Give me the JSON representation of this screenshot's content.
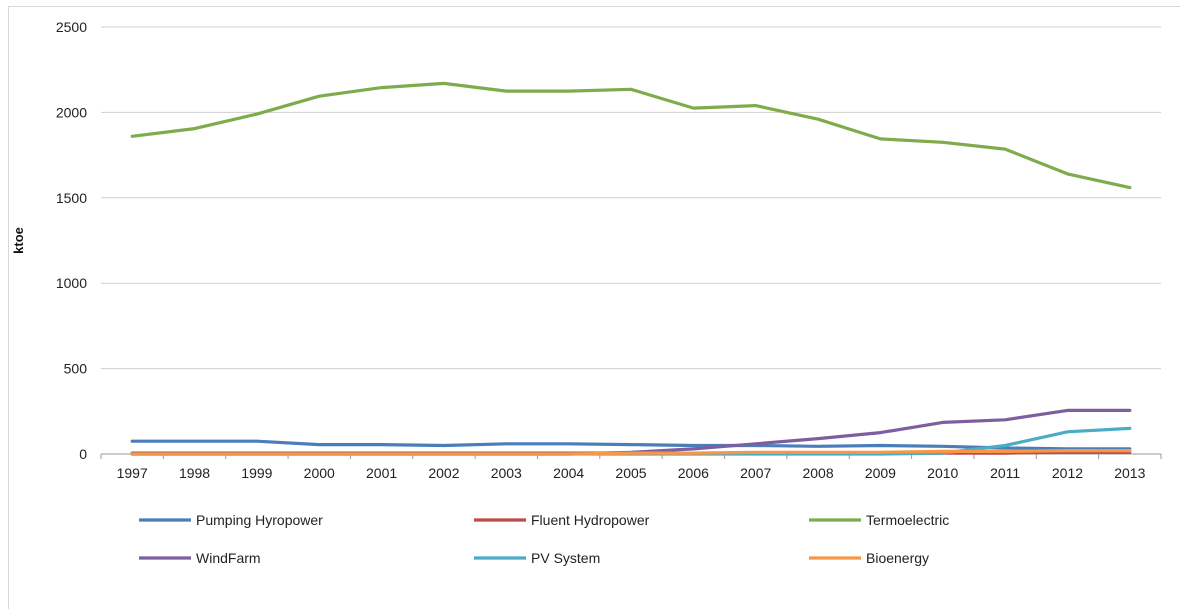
{
  "chart_data": {
    "type": "line",
    "title": "",
    "xlabel": "",
    "ylabel": "ktoe",
    "ylim": [
      0,
      2500
    ],
    "yticks": [
      0,
      500,
      1000,
      1500,
      2000,
      2500
    ],
    "grid": "horizontal",
    "legend_position": "bottom",
    "x": [
      "1997",
      "1998",
      "1999",
      "2000",
      "2001",
      "2002",
      "2003",
      "2004",
      "2005",
      "2006",
      "2007",
      "2008",
      "2009",
      "2010",
      "2011",
      "2012",
      "2013"
    ],
    "series": [
      {
        "name": "Pumping Hyropower",
        "color": "#4a7ebb",
        "values": [
          75,
          75,
          75,
          55,
          55,
          50,
          60,
          60,
          55,
          50,
          50,
          45,
          50,
          45,
          35,
          30,
          30
        ]
      },
      {
        "name": "Fluent Hydropower",
        "color": "#be4b48",
        "values": [
          5,
          5,
          5,
          5,
          5,
          5,
          5,
          5,
          5,
          5,
          5,
          5,
          5,
          5,
          5,
          10,
          10
        ]
      },
      {
        "name": "Termoelectric",
        "color": "#7eac4c",
        "values": [
          1860,
          1905,
          1990,
          2095,
          2145,
          2170,
          2125,
          2125,
          2135,
          2025,
          2040,
          1960,
          1845,
          1825,
          1785,
          1640,
          1560
        ]
      },
      {
        "name": "WindFarm",
        "color": "#7d5fa0",
        "values": [
          0,
          0,
          0,
          0,
          0,
          0,
          0,
          0,
          10,
          30,
          60,
          90,
          125,
          185,
          200,
          255,
          255
        ]
      },
      {
        "name": "PV System",
        "color": "#4bacc6",
        "values": [
          0,
          0,
          0,
          0,
          0,
          0,
          0,
          0,
          0,
          0,
          0,
          0,
          0,
          5,
          50,
          130,
          150
        ]
      },
      {
        "name": "Bioenergy",
        "color": "#f79646",
        "values": [
          0,
          0,
          0,
          0,
          0,
          0,
          0,
          0,
          5,
          5,
          10,
          10,
          10,
          15,
          15,
          20,
          20
        ]
      }
    ]
  }
}
